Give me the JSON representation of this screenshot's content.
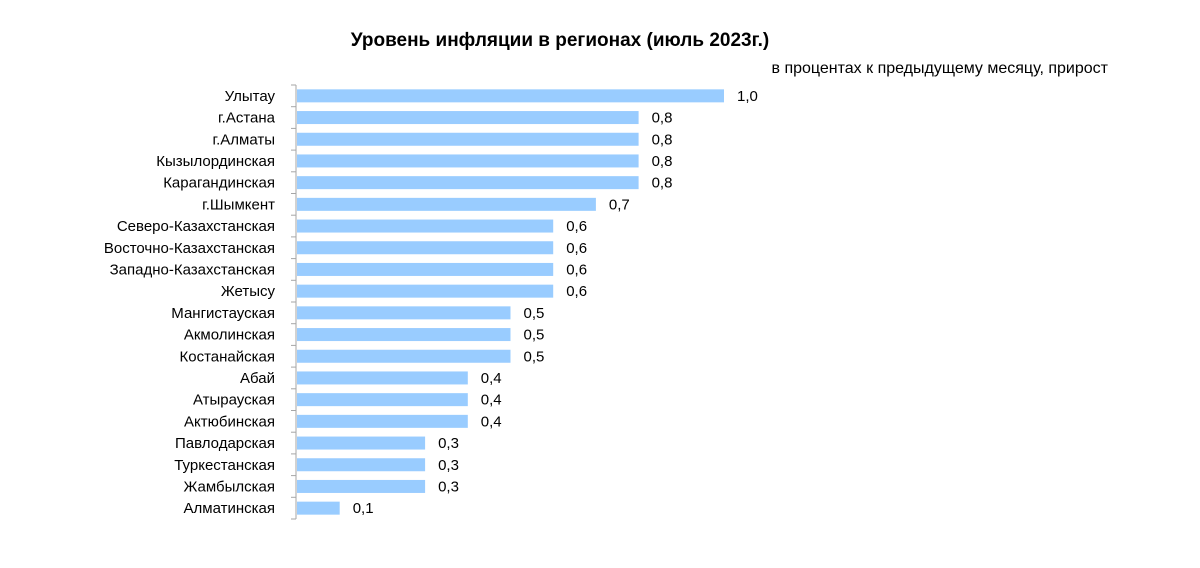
{
  "chart_data": {
    "type": "bar",
    "orientation": "horizontal",
    "title": "Уровень инфляции в регионах (июль 2023г.)",
    "subtitle": "в процентах к предыдущему месяцу, прирост",
    "categories": [
      "Улытау",
      "г.Астана",
      "г.Алматы",
      "Кызылординская",
      "Карагандинская",
      "г.Шымкент",
      "Северо-Казахстанская",
      "Восточно-Казахстанская",
      "Западно-Казахстанская",
      "Жетысу",
      "Мангистауская",
      "Акмолинская",
      "Костанайская",
      "Абай",
      "Атырауская",
      "Актюбинская",
      "Павлодарская",
      "Туркестанская",
      "Жамбылская",
      "Алматинская"
    ],
    "values": [
      1.0,
      0.8,
      0.8,
      0.8,
      0.8,
      0.7,
      0.6,
      0.6,
      0.6,
      0.6,
      0.5,
      0.5,
      0.5,
      0.4,
      0.4,
      0.4,
      0.3,
      0.3,
      0.3,
      0.1
    ],
    "value_labels": [
      "1,0",
      "0,8",
      "0,8",
      "0,8",
      "0,8",
      "0,7",
      "0,6",
      "0,6",
      "0,6",
      "0,6",
      "0,5",
      "0,5",
      "0,5",
      "0,4",
      "0,4",
      "0,4",
      "0,3",
      "0,3",
      "0,3",
      "0,1"
    ],
    "xlim": [
      0,
      1.0
    ],
    "bar_color": "#99CCFF",
    "axis_color": "#A6A6A6",
    "grid": false,
    "legend": "none"
  }
}
